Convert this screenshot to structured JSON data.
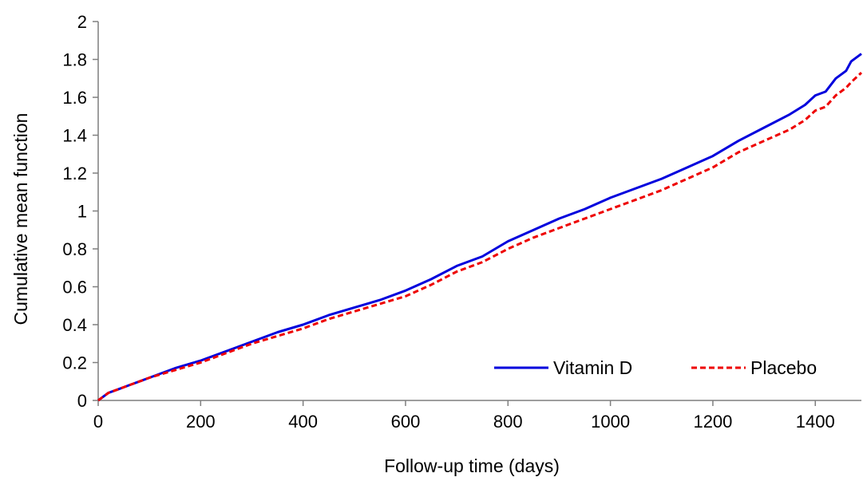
{
  "chart_data": {
    "type": "line",
    "xlabel": "Follow-up time (days)",
    "ylabel": "Cumulative mean function",
    "xlim": [
      0,
      1490
    ],
    "ylim": [
      0,
      2
    ],
    "x_ticks": [
      0,
      200,
      400,
      600,
      800,
      1000,
      1200,
      1400
    ],
    "y_ticks": [
      0,
      0.2,
      0.4,
      0.6,
      0.8,
      1,
      1.2,
      1.4,
      1.6,
      1.8,
      2
    ],
    "y_tick_labels": [
      "0",
      "0.2",
      "0.4",
      "0.6",
      "0.8",
      "1",
      "1.2",
      "1.4",
      "1.6",
      "1.8",
      "2"
    ],
    "grid": false,
    "legend_position": "bottom-right",
    "series": [
      {
        "name": "Vitamin D",
        "color": "#0000dd",
        "style": "solid",
        "points": [
          [
            0,
            0
          ],
          [
            20,
            0.04
          ],
          [
            40,
            0.06
          ],
          [
            60,
            0.08
          ],
          [
            80,
            0.1
          ],
          [
            100,
            0.12
          ],
          [
            150,
            0.17
          ],
          [
            200,
            0.21
          ],
          [
            250,
            0.26
          ],
          [
            300,
            0.31
          ],
          [
            350,
            0.36
          ],
          [
            400,
            0.4
          ],
          [
            450,
            0.45
          ],
          [
            500,
            0.49
          ],
          [
            550,
            0.53
          ],
          [
            600,
            0.58
          ],
          [
            650,
            0.64
          ],
          [
            700,
            0.71
          ],
          [
            750,
            0.76
          ],
          [
            800,
            0.84
          ],
          [
            850,
            0.9
          ],
          [
            900,
            0.96
          ],
          [
            950,
            1.01
          ],
          [
            1000,
            1.07
          ],
          [
            1050,
            1.12
          ],
          [
            1100,
            1.17
          ],
          [
            1150,
            1.23
          ],
          [
            1200,
            1.29
          ],
          [
            1250,
            1.37
          ],
          [
            1300,
            1.44
          ],
          [
            1350,
            1.51
          ],
          [
            1380,
            1.56
          ],
          [
            1400,
            1.61
          ],
          [
            1420,
            1.63
          ],
          [
            1440,
            1.7
          ],
          [
            1460,
            1.74
          ],
          [
            1470,
            1.79
          ],
          [
            1490,
            1.83
          ]
        ]
      },
      {
        "name": "Placebo",
        "color": "#ee0000",
        "style": "dashed",
        "points": [
          [
            0,
            0
          ],
          [
            20,
            0.04
          ],
          [
            40,
            0.06
          ],
          [
            60,
            0.08
          ],
          [
            80,
            0.1
          ],
          [
            100,
            0.12
          ],
          [
            150,
            0.16
          ],
          [
            200,
            0.2
          ],
          [
            250,
            0.25
          ],
          [
            300,
            0.3
          ],
          [
            350,
            0.34
          ],
          [
            400,
            0.38
          ],
          [
            450,
            0.43
          ],
          [
            500,
            0.47
          ],
          [
            550,
            0.51
          ],
          [
            600,
            0.55
          ],
          [
            650,
            0.61
          ],
          [
            700,
            0.68
          ],
          [
            750,
            0.73
          ],
          [
            800,
            0.8
          ],
          [
            850,
            0.86
          ],
          [
            900,
            0.91
          ],
          [
            950,
            0.96
          ],
          [
            1000,
            1.01
          ],
          [
            1050,
            1.06
          ],
          [
            1100,
            1.11
          ],
          [
            1150,
            1.17
          ],
          [
            1200,
            1.23
          ],
          [
            1250,
            1.31
          ],
          [
            1300,
            1.37
          ],
          [
            1350,
            1.43
          ],
          [
            1380,
            1.48
          ],
          [
            1400,
            1.53
          ],
          [
            1420,
            1.55
          ],
          [
            1440,
            1.61
          ],
          [
            1460,
            1.65
          ],
          [
            1470,
            1.68
          ],
          [
            1490,
            1.73
          ]
        ]
      }
    ]
  }
}
